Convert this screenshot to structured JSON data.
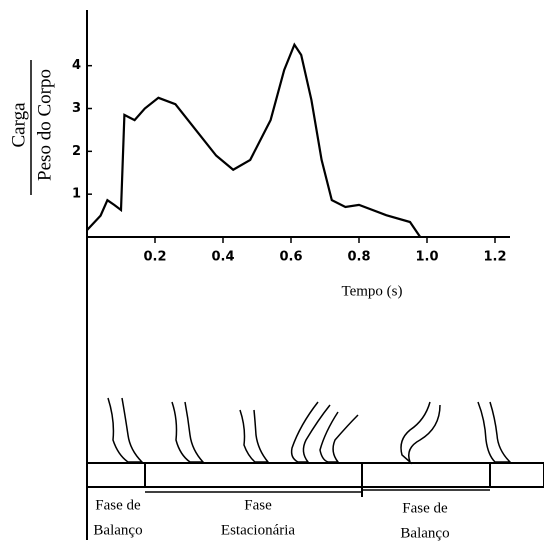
{
  "chart_data": {
    "type": "line",
    "y_label_numerator": "Carga",
    "y_label_denominator": "Peso do Corpo",
    "x_label": "Tempo (s)",
    "x": [
      0,
      0.04,
      0.06,
      0.08,
      0.1,
      0.11,
      0.14,
      0.17,
      0.21,
      0.26,
      0.32,
      0.38,
      0.43,
      0.48,
      0.54,
      0.58,
      0.61,
      0.63,
      0.66,
      0.69,
      0.72,
      0.76,
      0.8,
      0.88,
      0.95,
      0.98
    ],
    "series": [
      {
        "color": "#000000",
        "values": [
          0.16,
          0.5,
          0.86,
          0.75,
          0.63,
          2.85,
          2.73,
          3.0,
          3.25,
          3.1,
          2.5,
          1.9,
          1.57,
          1.8,
          2.73,
          3.9,
          4.49,
          4.25,
          3.2,
          1.8,
          0.86,
          0.7,
          0.75,
          0.51,
          0.35,
          0
        ]
      }
    ],
    "xlim": [
      0,
      1.25
    ],
    "ylim": [
      0,
      5.3
    ],
    "xticks": [
      0.2,
      0.4,
      0.6,
      0.8,
      {
        "value": 1.0,
        "label": "1.0"
      },
      1.2
    ],
    "yticks": [
      1,
      2,
      3,
      4
    ]
  },
  "gait_diagram": {
    "phases": [
      [
        "Fase de",
        "Balanço"
      ],
      [
        "Fase",
        "Estacionária"
      ],
      [
        "Fase de",
        "Balanço"
      ]
    ]
  }
}
